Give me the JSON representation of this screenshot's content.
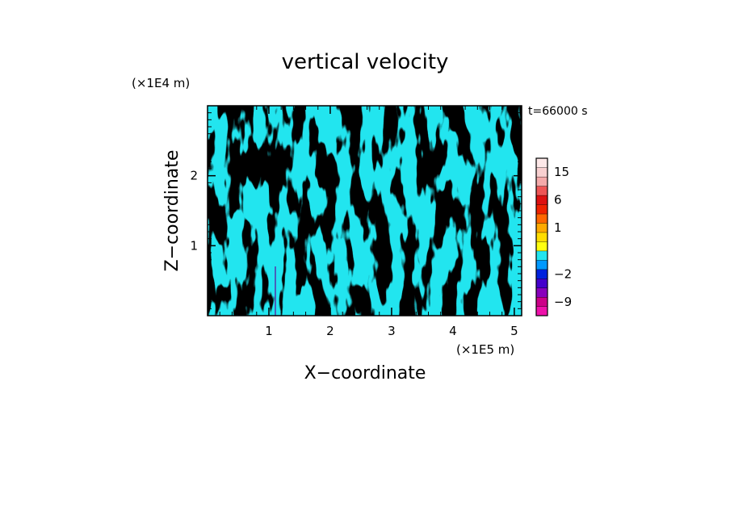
{
  "chart_data": {
    "type": "heatmap",
    "title": "vertical velocity",
    "xlabel": "X−coordinate",
    "ylabel": "Z−coordinate",
    "x_scale_label": "(×1E5 m)",
    "y_scale_label": "(×1E4 m)",
    "time_label": "t=66000 s",
    "xlim": [
      0,
      5.12
    ],
    "ylim": [
      0,
      3.0
    ],
    "x_ticks": [
      1,
      2,
      3,
      4,
      5
    ],
    "y_ticks": [
      1,
      2
    ],
    "pattern_colors": {
      "negative": "#22e5ef",
      "positive": "#ffff10"
    },
    "colorbar": {
      "levels": [
        -12,
        -9,
        -6,
        -4,
        -2,
        -1,
        -0.5,
        0,
        0.5,
        1,
        2,
        4,
        6,
        9,
        12,
        15,
        18,
        24
      ],
      "colors": [
        "#ee11aa",
        "#cc0088",
        "#8800bb",
        "#4400cc",
        "#0022dd",
        "#0099ff",
        "#22e5ef",
        "#ffff10",
        "#ffdd00",
        "#ffaa00",
        "#ff6600",
        "#ee2200",
        "#dd1111",
        "#ee5555",
        "#f4aaaa",
        "#f8d0d0",
        "#fde8e8"
      ],
      "tick_labels": [
        {
          "value": -9,
          "label": "−9"
        },
        {
          "value": -2,
          "label": "−2"
        },
        {
          "value": 1,
          "label": "1"
        },
        {
          "value": 6,
          "label": "6"
        },
        {
          "value": 15,
          "label": "15"
        }
      ]
    }
  }
}
